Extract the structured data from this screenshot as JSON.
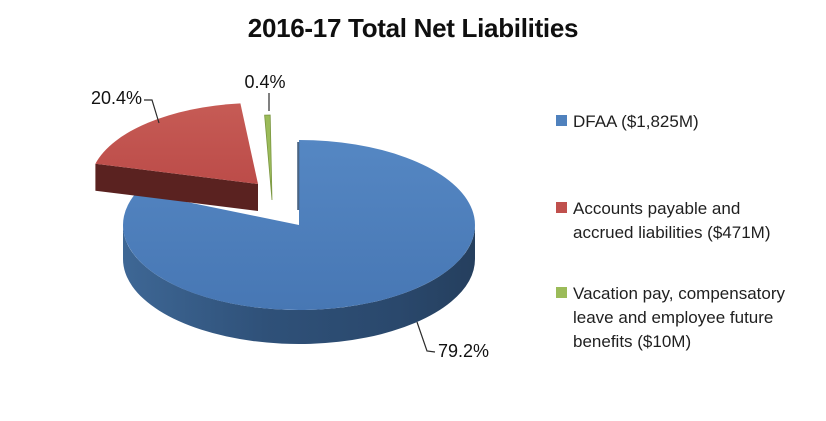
{
  "title": "2016-17 Total Net Liabilities",
  "chart_data": {
    "type": "pie",
    "title": "2016-17 Total Net Liabilities",
    "effect": "3d-exploded",
    "legend_position": "right",
    "background": "#ffffff",
    "slices": [
      {
        "label": "DFAA ($1,825M)",
        "value": 79.2,
        "pct": "79.2%",
        "color": "#4C7EBB",
        "side_color": "#2F5179"
      },
      {
        "label": "Accounts payable and accrued liabilities ($471M)",
        "value": 20.4,
        "pct": "20.4%",
        "color": "#C0534F",
        "side_color": "#5A2220"
      },
      {
        "label": "Vacation pay, compensatory leave and employee future benefits ($10M)",
        "value": 0.4,
        "pct": "0.4%",
        "color": "#9BBB59",
        "side_color": "#7A9640"
      }
    ]
  },
  "legend": {
    "items": [
      {
        "color": "#4F81BD",
        "lines": [
          "DFAA ($1,825M)"
        ]
      },
      {
        "color": "#C0504D",
        "lines": [
          "Accounts payable and",
          "accrued liabilities ($471M)"
        ]
      },
      {
        "color": "#9BBB59",
        "lines": [
          "Vacation pay, compensatory",
          "leave and employee future",
          "benefits ($10M)"
        ]
      }
    ]
  }
}
